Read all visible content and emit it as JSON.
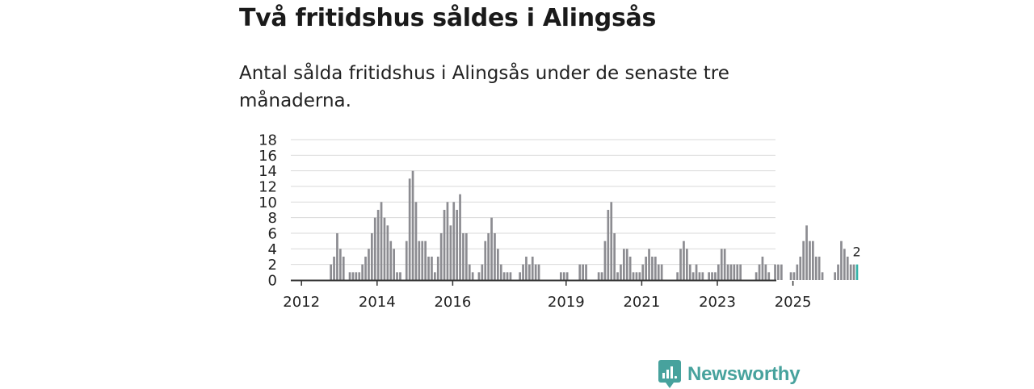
{
  "title": "Två fritidshus såldes i Alingsås",
  "subtitle": "Antal sålda fritidshus i Alingsås under de senaste tre månaderna.",
  "brand": {
    "name": "Newsworthy"
  },
  "colors": {
    "bar": "#8c8c91",
    "highlight": "#34b3a8",
    "grid": "#d9d9d9",
    "axis": "#333333",
    "brand": "#47a29d"
  },
  "chart_data": {
    "type": "bar",
    "title": "Antal sålda fritidshus i Alingsås",
    "xlabel": "",
    "ylabel": "",
    "ylim": [
      0,
      18
    ],
    "y_ticks": [
      "0",
      "2",
      "4",
      "6",
      "8",
      "10",
      "12",
      "14",
      "16",
      "18"
    ],
    "x_tick_labels": [
      "2012",
      "2014",
      "2016",
      "2019",
      "2021",
      "2023",
      "2025"
    ],
    "x_tick_years": [
      2012,
      2014,
      2016,
      2019,
      2021,
      2023,
      2025
    ],
    "start": {
      "year": 2011,
      "month": 10
    },
    "highlight_label": "2",
    "values": [
      0,
      0,
      0,
      0,
      0,
      0,
      0,
      0,
      0,
      0,
      0,
      0,
      2,
      3,
      6,
      4,
      3,
      0,
      1,
      1,
      1,
      1,
      2,
      3,
      4,
      6,
      8,
      9,
      10,
      8,
      7,
      5,
      4,
      1,
      1,
      0,
      5,
      13,
      14,
      10,
      5,
      5,
      5,
      3,
      3,
      1,
      3,
      6,
      9,
      10,
      7,
      10,
      9,
      11,
      6,
      6,
      2,
      1,
      0,
      1,
      2,
      5,
      6,
      8,
      6,
      4,
      2,
      1,
      1,
      1,
      0,
      0,
      1,
      2,
      3,
      2,
      3,
      2,
      2,
      0,
      0,
      0,
      0,
      0,
      0,
      1,
      1,
      1,
      0,
      0,
      0,
      2,
      2,
      2,
      0,
      0,
      0,
      1,
      1,
      5,
      9,
      10,
      6,
      1,
      2,
      4,
      4,
      3,
      1,
      1,
      1,
      2,
      3,
      4,
      3,
      3,
      2,
      2,
      0,
      0,
      0,
      0,
      1,
      4,
      5,
      4,
      2,
      1,
      2,
      1,
      1,
      0,
      1,
      1,
      1,
      2,
      4,
      4,
      2,
      2,
      2,
      2,
      2,
      0,
      0,
      0,
      0,
      1,
      2,
      3,
      2,
      1,
      0,
      2,
      2,
      2,
      0,
      0,
      1,
      1,
      2,
      3,
      5,
      7,
      5,
      5,
      3,
      3,
      1,
      0,
      0,
      0,
      1,
      2,
      5,
      4,
      3,
      2,
      2,
      2
    ]
  }
}
